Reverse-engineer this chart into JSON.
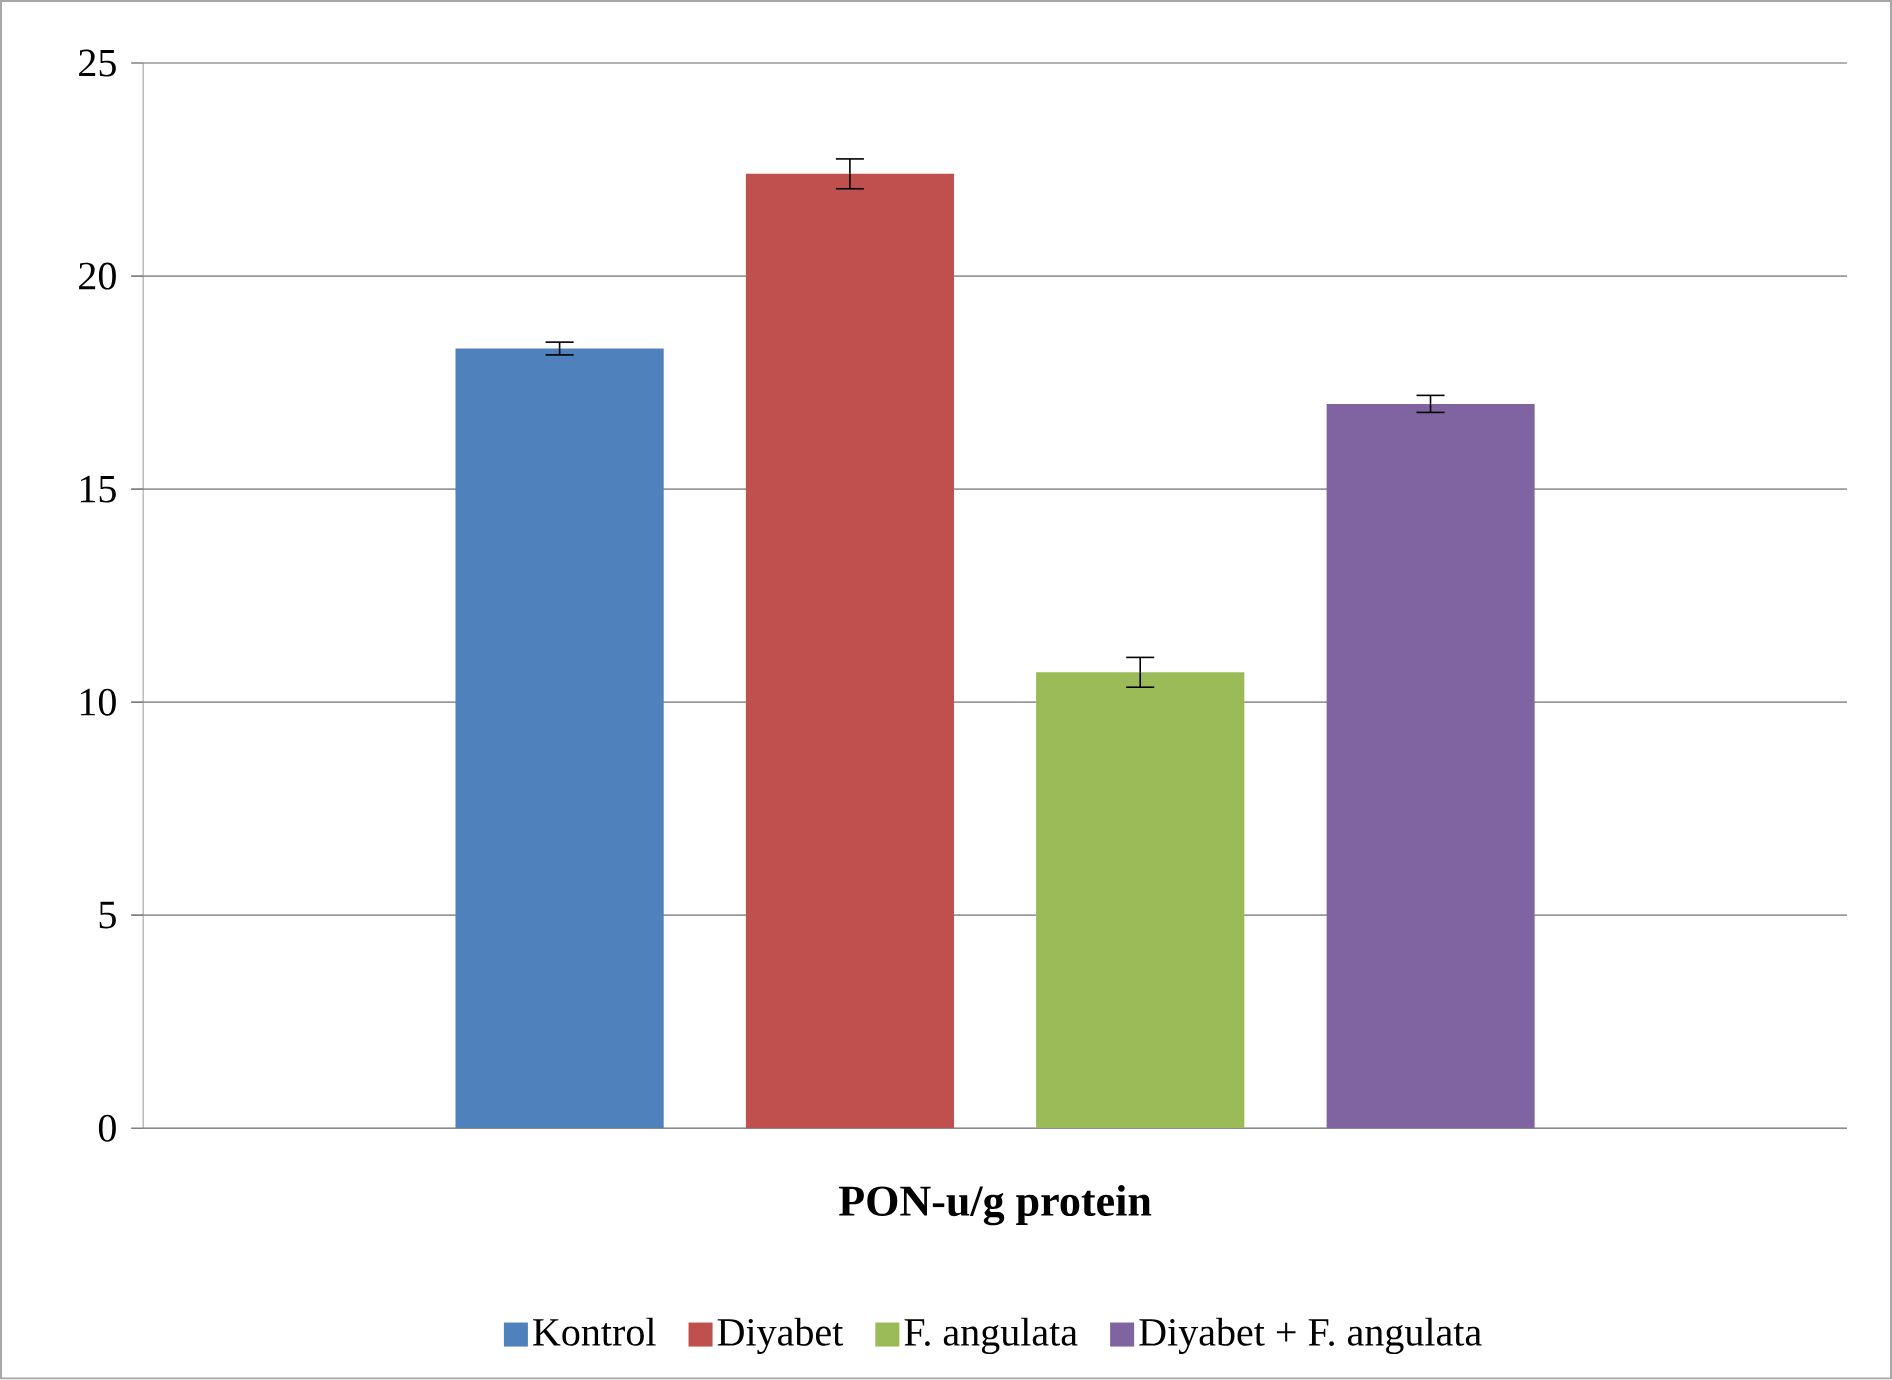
{
  "chart_data": {
    "type": "bar",
    "categories": [
      null
    ],
    "xlabel": "PON-u/g protein",
    "series": [
      {
        "name": "Kontrol",
        "color": "#4f81bd",
        "values": [
          18.3
        ],
        "errors": [
          0.15
        ]
      },
      {
        "name": "Diyabet",
        "color": "#c0504d",
        "values": [
          22.4
        ],
        "errors": [
          0.35
        ]
      },
      {
        "name": "F. angulata",
        "color": "#9bbb59",
        "values": [
          10.7
        ],
        "errors": [
          0.35
        ]
      },
      {
        "name": "Diyabet + F. angulata",
        "color": "#8064a2",
        "values": [
          17.0
        ],
        "errors": [
          0.2
        ]
      }
    ],
    "ylim": [
      0,
      25
    ],
    "yticks": [
      0,
      5,
      10,
      15,
      20,
      25
    ],
    "grid": "y",
    "legend": "bottom"
  }
}
